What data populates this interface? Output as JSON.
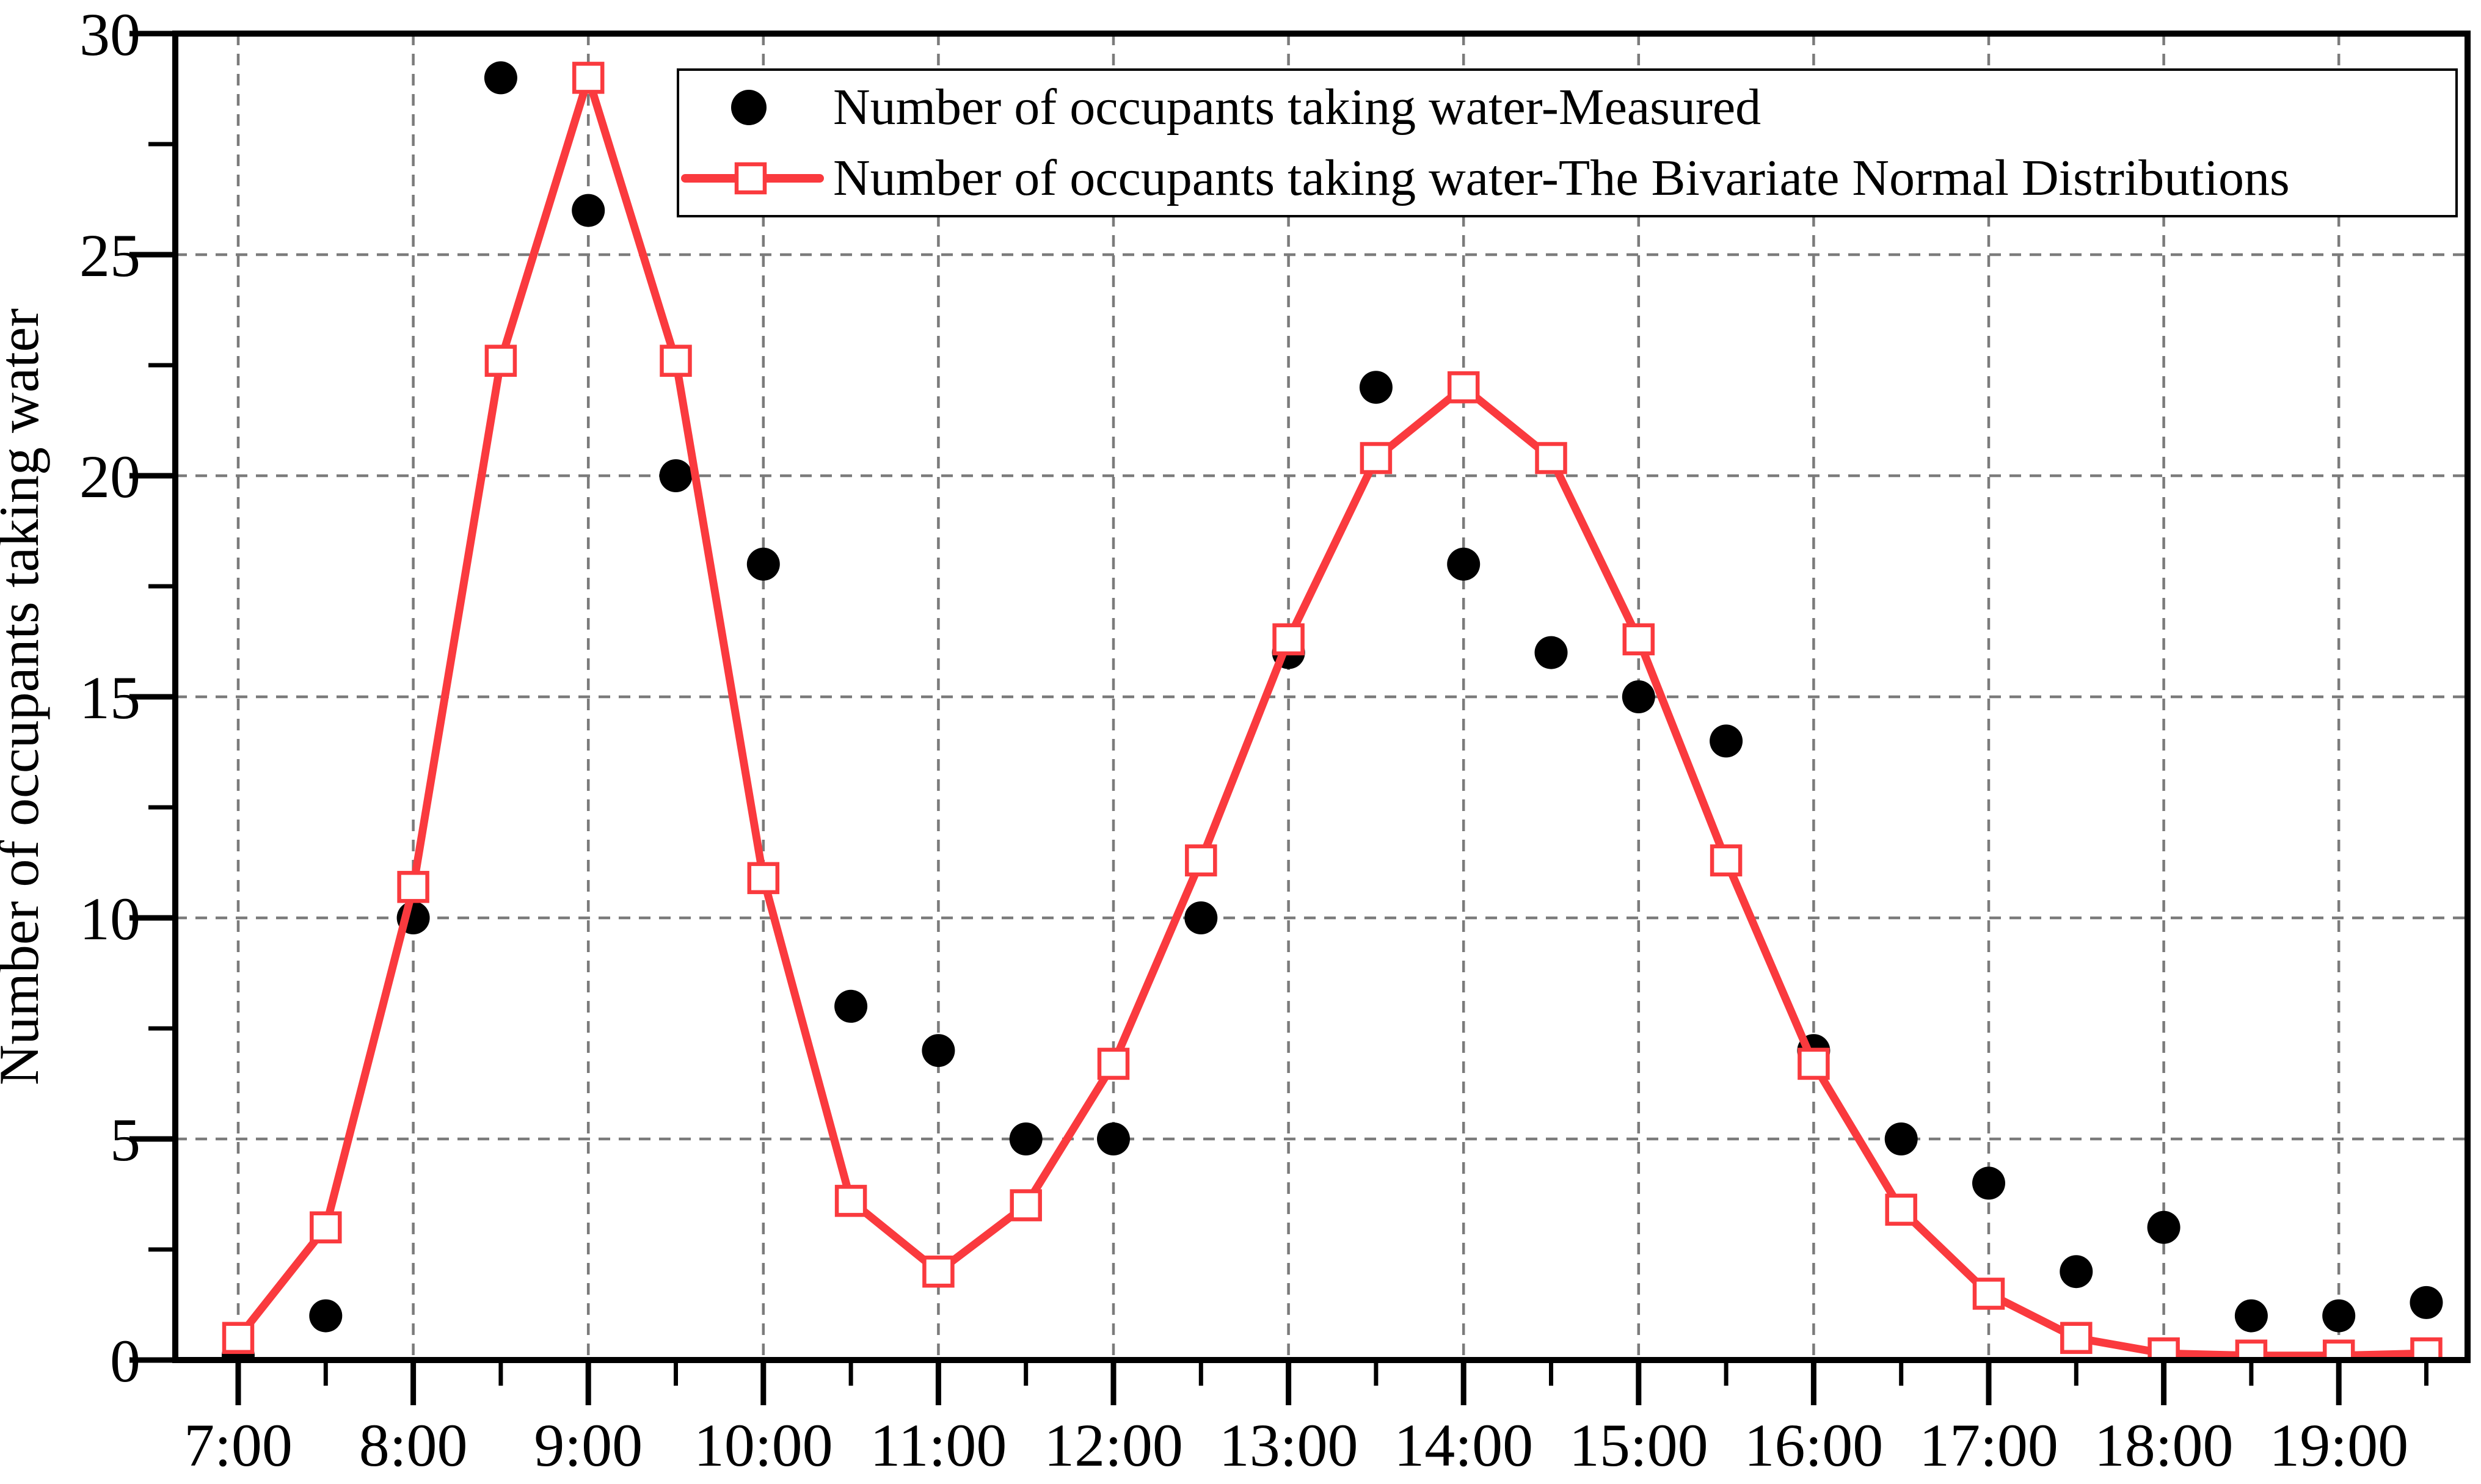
{
  "chart_data": {
    "type": "line",
    "title": "",
    "xlabel": "",
    "ylabel": "Number of occupants taking water",
    "ylim": [
      0,
      30
    ],
    "yticks_major": [
      0,
      5,
      10,
      15,
      20,
      25,
      30
    ],
    "yticks_minor": [
      2.5,
      7.5,
      12.5,
      17.5,
      22.5,
      27.5
    ],
    "x_major_hours": [
      7,
      8,
      9,
      10,
      11,
      12,
      13,
      14,
      15,
      16,
      17,
      18,
      19
    ],
    "x_minor_hours": [
      7.5,
      8.5,
      9.5,
      10.5,
      11.5,
      12.5,
      13.5,
      14.5,
      15.5,
      16.5,
      17.5,
      18.5,
      19.5
    ],
    "x_tick_labels": [
      "7:00",
      "8:00",
      "9:00",
      "10:00",
      "11:00",
      "12:00",
      "13:00",
      "14:00",
      "15:00",
      "16:00",
      "17:00",
      "18:00",
      "19:00"
    ],
    "x": [
      7,
      7.5,
      8,
      8.5,
      9,
      9.5,
      10,
      10.5,
      11,
      11.5,
      12,
      12.5,
      13,
      13.5,
      14,
      14.5,
      15,
      15.5,
      16,
      16.5,
      17,
      17.5,
      18,
      18.5,
      19,
      19.5
    ],
    "series": [
      {
        "name": "Number of occupants taking water-Measured",
        "type": "scatter",
        "marker": "filled-circle",
        "color": "#000000",
        "values": [
          0.1,
          1,
          10,
          29,
          26,
          20,
          18,
          8,
          7,
          5,
          5,
          10,
          16,
          22,
          18,
          16,
          15,
          14,
          7,
          5,
          4,
          2,
          3,
          1,
          1,
          1.3
        ]
      },
      {
        "name": "Number of occupants taking water-The Bivariate Normal Distributions",
        "type": "line+marker",
        "marker": "open-square",
        "color": "#fa3a3e",
        "values": [
          0.5,
          3,
          10.7,
          22.6,
          29,
          22.6,
          10.9,
          3.6,
          2,
          3.5,
          6.7,
          11.3,
          16.3,
          20.4,
          22,
          20.4,
          16.3,
          11.3,
          6.7,
          3.4,
          1.5,
          0.5,
          0.15,
          0.1,
          0.1,
          0.15
        ]
      }
    ],
    "grid": {
      "horizontal_at": [
        5,
        10,
        15,
        20,
        25
      ],
      "vertical_at_hours": [
        7,
        8,
        9,
        10,
        11,
        12,
        13,
        14,
        15,
        16,
        17,
        18,
        19
      ],
      "color": "#7b7b7b",
      "dash": "19 14"
    },
    "legend_position": "top-right-inside"
  },
  "colors": {
    "background": "#ffffff",
    "frame": "#000000",
    "grid": "#7b7b7b",
    "measured": "#000000",
    "model": "#fa3a3e"
  }
}
